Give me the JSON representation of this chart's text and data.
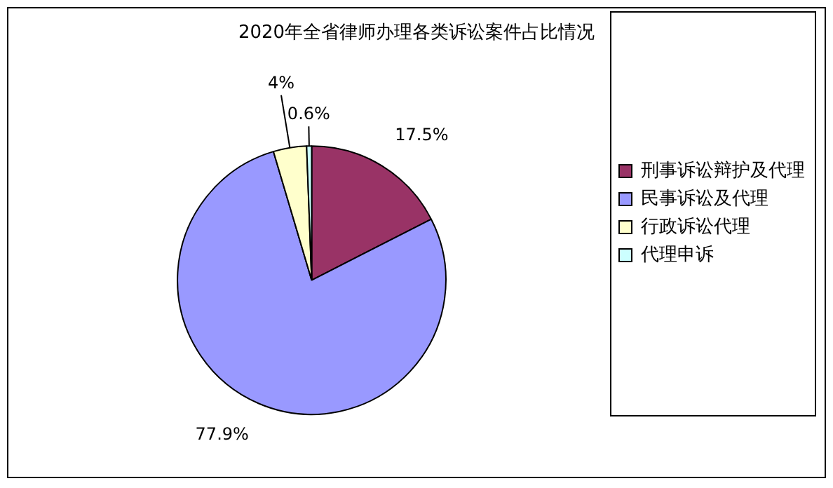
{
  "chart_data": {
    "type": "pie",
    "title": "2020年全省律师办理各类诉讼案件占比情况",
    "categories": [
      "刑事诉讼辩护及代理",
      "民事诉讼及代理",
      "行政诉讼代理",
      "代理申诉"
    ],
    "values": [
      17.5,
      77.9,
      4,
      0.6
    ],
    "colors": [
      "#993366",
      "#9999ff",
      "#ffffcc",
      "#ccffff"
    ],
    "value_labels": [
      "17.5%",
      "77.9%",
      "4%",
      "0.6%"
    ],
    "legend": "right"
  }
}
